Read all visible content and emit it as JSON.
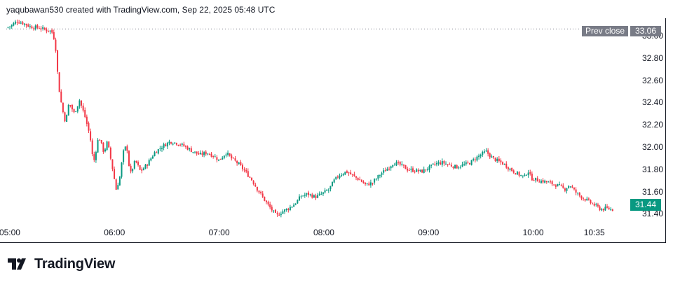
{
  "header": {
    "text": "yaqubawan530 created with TradingView.com, Sep 22, 2025 05:48 UTC"
  },
  "prev_close": {
    "label": "Prev close",
    "value": "33.06"
  },
  "last_price": {
    "value": "31.44"
  },
  "branding": {
    "name": "TradingView",
    "logo_icon": "tradingview-logo-icon"
  },
  "colors": {
    "up": "#089981",
    "down": "#f23645",
    "prev_close_line": "#787b86",
    "badge": "#787b86"
  },
  "chart_data": {
    "type": "candlestick",
    "title": "",
    "xlabel": "",
    "ylabel": "",
    "y_ticks": [
      "33.00",
      "32.80",
      "32.60",
      "32.40",
      "32.20",
      "32.00",
      "31.80",
      "31.60",
      "31.40"
    ],
    "y_tick_values": [
      33.0,
      32.8,
      32.6,
      32.4,
      32.2,
      32.0,
      31.8,
      31.6,
      31.4
    ],
    "x_ticks": [
      "05:00",
      "06:00",
      "07:00",
      "08:00",
      "09:00",
      "10:00",
      "10:35"
    ],
    "x_tick_minutes": [
      300,
      360,
      420,
      480,
      540,
      600,
      635
    ],
    "ylim": [
      31.34,
      33.15
    ],
    "xlim_minutes": [
      298,
      654
    ],
    "prev_close": 33.06,
    "last": 31.44,
    "grid": false,
    "price_path": [
      [
        299,
        33.07
      ],
      [
        302,
        33.09
      ],
      [
        305,
        33.13
      ],
      [
        309,
        33.11
      ],
      [
        313,
        33.08
      ],
      [
        318,
        33.07
      ],
      [
        322,
        33.05
      ],
      [
        325,
        33.04
      ],
      [
        327,
        32.95
      ],
      [
        329,
        32.55
      ],
      [
        331,
        32.35
      ],
      [
        333,
        32.22
      ],
      [
        335,
        32.4
      ],
      [
        338,
        32.3
      ],
      [
        341,
        32.42
      ],
      [
        344,
        32.28
      ],
      [
        347,
        32.1
      ],
      [
        349,
        31.85
      ],
      [
        352,
        32.1
      ],
      [
        355,
        31.95
      ],
      [
        357,
        32.05
      ],
      [
        360,
        31.8
      ],
      [
        362,
        31.62
      ],
      [
        364,
        31.72
      ],
      [
        366,
        31.95
      ],
      [
        368,
        32.02
      ],
      [
        370,
        31.75
      ],
      [
        373,
        31.88
      ],
      [
        376,
        31.78
      ],
      [
        380,
        31.85
      ],
      [
        384,
        31.95
      ],
      [
        388,
        32.0
      ],
      [
        393,
        32.05
      ],
      [
        398,
        32.03
      ],
      [
        402,
        32.0
      ],
      [
        406,
        31.96
      ],
      [
        410,
        31.93
      ],
      [
        414,
        31.95
      ],
      [
        418,
        31.92
      ],
      [
        421,
        31.88
      ],
      [
        425,
        31.95
      ],
      [
        428,
        31.9
      ],
      [
        432,
        31.85
      ],
      [
        436,
        31.78
      ],
      [
        440,
        31.7
      ],
      [
        443,
        31.62
      ],
      [
        446,
        31.55
      ],
      [
        449,
        31.48
      ],
      [
        452,
        31.42
      ],
      [
        454,
        31.38
      ],
      [
        457,
        31.42
      ],
      [
        461,
        31.45
      ],
      [
        465,
        31.5
      ],
      [
        468,
        31.56
      ],
      [
        472,
        31.58
      ],
      [
        476,
        31.55
      ],
      [
        480,
        31.58
      ],
      [
        484,
        31.62
      ],
      [
        487,
        31.7
      ],
      [
        490,
        31.75
      ],
      [
        494,
        31.78
      ],
      [
        498,
        31.74
      ],
      [
        502,
        31.7
      ],
      [
        505,
        31.66
      ],
      [
        509,
        31.68
      ],
      [
        513,
        31.75
      ],
      [
        517,
        31.8
      ],
      [
        521,
        31.86
      ],
      [
        525,
        31.84
      ],
      [
        529,
        31.8
      ],
      [
        533,
        31.79
      ],
      [
        537,
        31.78
      ],
      [
        541,
        31.81
      ],
      [
        545,
        31.85
      ],
      [
        549,
        31.86
      ],
      [
        553,
        31.84
      ],
      [
        557,
        31.82
      ],
      [
        561,
        31.84
      ],
      [
        565,
        31.86
      ],
      [
        568,
        31.9
      ],
      [
        571,
        31.93
      ],
      [
        574,
        31.96
      ],
      [
        577,
        31.91
      ],
      [
        580,
        31.88
      ],
      [
        584,
        31.85
      ],
      [
        588,
        31.8
      ],
      [
        592,
        31.76
      ],
      [
        596,
        31.73
      ],
      [
        598,
        31.79
      ],
      [
        600,
        31.72
      ],
      [
        604,
        31.7
      ],
      [
        608,
        31.69
      ],
      [
        612,
        31.67
      ],
      [
        616,
        31.65
      ],
      [
        619,
        31.62
      ],
      [
        622,
        31.66
      ],
      [
        625,
        31.6
      ],
      [
        628,
        31.56
      ],
      [
        631,
        31.53
      ],
      [
        634,
        31.5
      ],
      [
        637,
        31.47
      ],
      [
        640,
        31.44
      ],
      [
        643,
        31.45
      ],
      [
        646,
        31.44
      ]
    ]
  }
}
